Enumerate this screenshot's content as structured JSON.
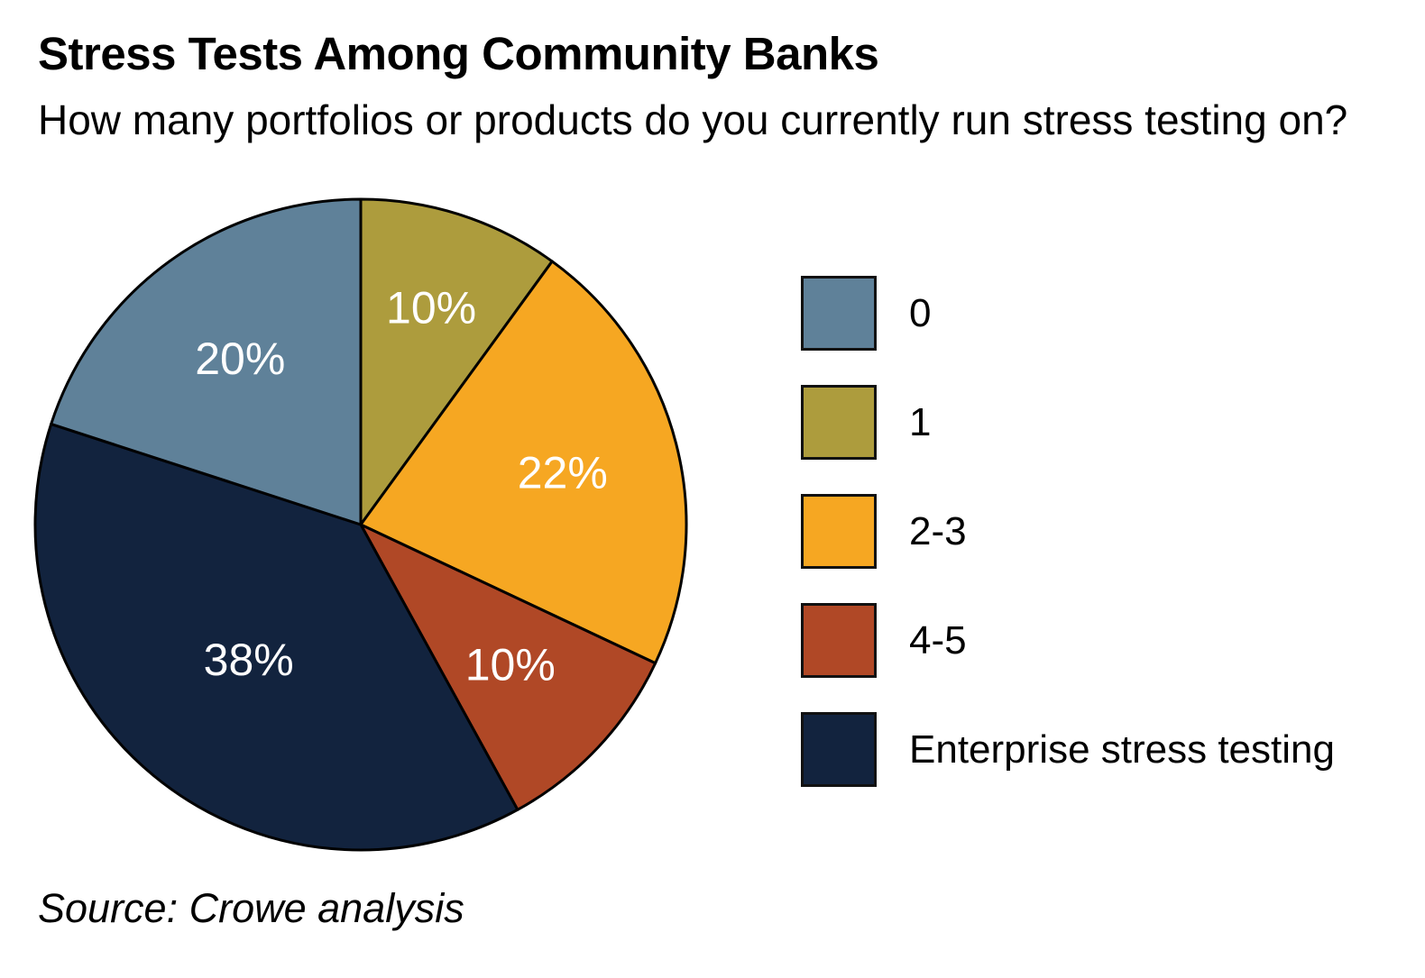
{
  "header": {
    "title": "Stress Tests Among Community Banks",
    "subtitle": "How many portfolios or products do you currently run stress testing on?"
  },
  "source_note": "Source: Crowe analysis",
  "colors": {
    "background": "#ffffff",
    "text": "#000000",
    "slice_border": "#000000",
    "slice_label_text": "#ffffff",
    "steel_blue": "#5F8199",
    "olive": "#AD9C3D",
    "orange": "#F6A722",
    "rust": "#B04826",
    "navy": "#12233E"
  },
  "chart_data": {
    "type": "pie",
    "title": "Stress Tests Among Community Banks",
    "subtitle": "How many portfolios or products do you currently run stress testing on?",
    "unit": "%",
    "start_angle_deg": 0,
    "direction": "clockwise",
    "slices": [
      {
        "label": "1",
        "value": 10,
        "display": "10%",
        "color": "#AD9C3D",
        "label_radius": 0.7
      },
      {
        "label": "2-3",
        "value": 22,
        "display": "22%",
        "color": "#F6A722",
        "label_radius": 0.64
      },
      {
        "label": "4-5",
        "value": 10,
        "display": "10%",
        "color": "#B04826",
        "label_radius": 0.63
      },
      {
        "label": "Enterprise stress testing",
        "value": 38,
        "display": "38%",
        "color": "#12233E",
        "label_radius": 0.54
      },
      {
        "label": "0",
        "value": 20,
        "display": "20%",
        "color": "#5F8199",
        "label_radius": 0.63
      }
    ],
    "legend": {
      "position": "right",
      "items": [
        {
          "label": "0",
          "color": "#5F8199"
        },
        {
          "label": "1",
          "color": "#AD9C3D"
        },
        {
          "label": "2-3",
          "color": "#F6A722"
        },
        {
          "label": "4-5",
          "color": "#B04826"
        },
        {
          "label": "Enterprise stress testing",
          "color": "#12233E"
        }
      ]
    }
  }
}
